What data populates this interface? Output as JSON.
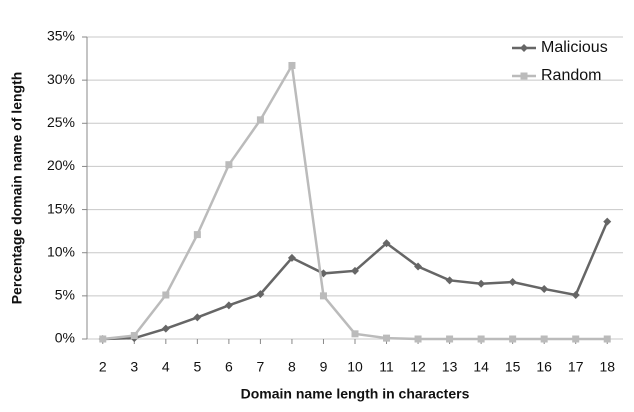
{
  "chart_data": {
    "type": "line",
    "x_label": "Domain name length in characters",
    "y_label": "Percentage domain name of length",
    "x": [
      2,
      3,
      4,
      5,
      6,
      7,
      8,
      9,
      10,
      11,
      12,
      13,
      14,
      15,
      16,
      17,
      18
    ],
    "series": [
      {
        "name": "Malicious",
        "color": "#666666",
        "marker": "diamond",
        "values": [
          0,
          0.1,
          1.2,
          2.5,
          3.9,
          5.2,
          9.4,
          7.6,
          7.9,
          11.1,
          8.4,
          6.8,
          6.4,
          6.6,
          5.8,
          5.1,
          13.6
        ]
      },
      {
        "name": "Random",
        "color": "#bbbbbb",
        "marker": "square",
        "values": [
          0,
          0.4,
          5.1,
          12.1,
          20.2,
          25.4,
          31.7,
          5.0,
          0.6,
          0.1,
          0,
          0,
          0,
          0,
          0,
          0,
          0
        ]
      }
    ],
    "xlim": [
      1.5,
      18.5
    ],
    "xticks": [
      2,
      3,
      4,
      5,
      6,
      7,
      8,
      9,
      10,
      11,
      12,
      13,
      14,
      15,
      16,
      17,
      18
    ],
    "ylim": [
      0,
      35
    ],
    "yticks": [
      {
        "value": 0,
        "label": "0%"
      },
      {
        "value": 5,
        "label": "5%"
      },
      {
        "value": 10,
        "label": "10%"
      },
      {
        "value": 15,
        "label": "15%"
      },
      {
        "value": 20,
        "label": "20%"
      },
      {
        "value": 25,
        "label": "25%"
      },
      {
        "value": 30,
        "label": "30%"
      },
      {
        "value": 35,
        "label": "35%"
      }
    ],
    "grid": true,
    "legend": "top-right"
  }
}
